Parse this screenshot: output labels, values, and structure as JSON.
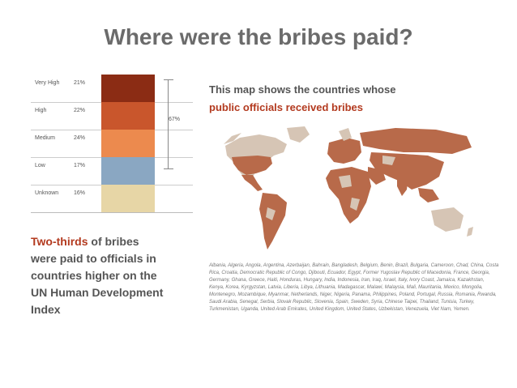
{
  "title": "Where were the bribes paid?",
  "legend": {
    "rows": [
      {
        "label": "Very High",
        "pct": "21%",
        "color": "#8b2c14"
      },
      {
        "label": "High",
        "pct": "22%",
        "color": "#c9562c"
      },
      {
        "label": "Medium",
        "pct": "24%",
        "color": "#ec8a4e"
      },
      {
        "label": "Low",
        "pct": "17%",
        "color": "#8aa7c2"
      },
      {
        "label": "Unknown",
        "pct": "16%",
        "color": "#e7d6a6"
      }
    ],
    "brace_label": "67%"
  },
  "map_caption": {
    "line1": "This map shows the countries whose",
    "line2": "public officials received bribes"
  },
  "left_text": {
    "highlight": "Two-thirds",
    "rest_line1": " of bribes",
    "line2": "were paid to officials in",
    "line3": "countries higher on the",
    "line4": "UN Human Development",
    "line5": "Index"
  },
  "map_colors": {
    "highlight": "#b86a4a",
    "other": "#d6c5b5"
  },
  "countries_list": "Albania, Algeria, Angola, Argentina, Azerbaijan, Bahrain, Bangladesh, Belgium, Benin, Brazil, Bulgaria, Cameroon, Chad, China, Costa Rica, Croatia, Democratic Republic of Congo, Djibouti, Ecuador, Egypt, Former Yugoslav Republic of Macedonia, France, Georgia, Germany, Ghana, Greece, Haiti, Honduras, Hungary, India, Indonesia, Iran, Iraq, Israel, Italy, Ivory Coast, Jamaica, Kazakhstan, Kenya, Korea, Kyrgyzstan, Latvia, Liberia, Libya, Lithuania, Madagascar, Malawi, Malaysia, Mali, Mauritania, Mexico, Mongolia, Montenegro, Mozambique, Myanmar, Netherlands, Niger, Nigeria, Panama, Philippines, Poland, Portugal, Russia, Romania, Rwanda, Saudi Arabia, Senegal, Serbia, Slovak Republic, Slovenia, Spain, Sweden, Syria, Chinese Taipei, Thailand, Tunisia, Turkey, Turkmenistan, Uganda, United Arab Emirates, United Kingdom, United States, Uzbekistan, Venezuela, Viet Nam, Yemen."
}
